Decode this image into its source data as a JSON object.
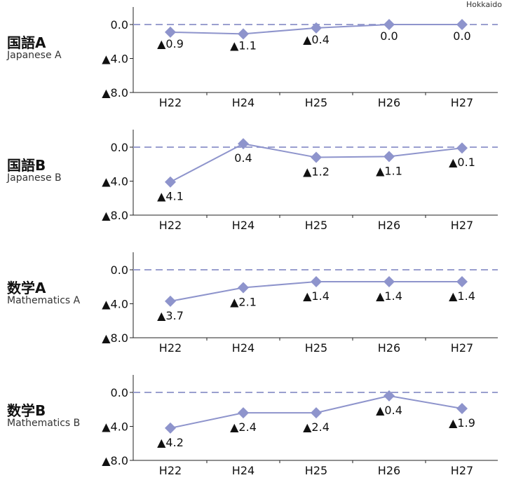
{
  "region_label": "Hokkaido",
  "chart_data": [
    {
      "type": "line",
      "title": "国語A",
      "subtitle": "Japanese A",
      "categories": [
        "H22",
        "H24",
        "H25",
        "H26",
        "H27"
      ],
      "values": [
        -0.9,
        -1.1,
        -0.4,
        0.0,
        0.0
      ],
      "labels": [
        "▲0.9",
        "▲1.1",
        "▲0.4",
        "0.0",
        "0.0"
      ],
      "yticks": [
        "0.0",
        "▲4.0",
        "▲8.0"
      ],
      "ylim": [
        -8,
        0
      ]
    },
    {
      "type": "line",
      "title": "国語B",
      "subtitle": "Japanese B",
      "categories": [
        "H22",
        "H24",
        "H25",
        "H26",
        "H27"
      ],
      "values": [
        -4.1,
        0.4,
        -1.2,
        -1.1,
        -0.1
      ],
      "labels": [
        "▲4.1",
        "0.4",
        "▲1.2",
        "▲1.1",
        "▲0.1"
      ],
      "yticks": [
        "0.0",
        "▲4.0",
        "▲8.0"
      ],
      "ylim": [
        -8,
        0
      ]
    },
    {
      "type": "line",
      "title": "数学A",
      "subtitle": "Mathematics A",
      "categories": [
        "H22",
        "H24",
        "H25",
        "H26",
        "H27"
      ],
      "values": [
        -3.7,
        -2.1,
        -1.4,
        -1.4,
        -1.4
      ],
      "labels": [
        "▲3.7",
        "▲2.1",
        "▲1.4",
        "▲1.4",
        "▲1.4"
      ],
      "yticks": [
        "0.0",
        "▲4.0",
        "▲8.0"
      ],
      "ylim": [
        -8,
        0
      ]
    },
    {
      "type": "line",
      "title": "数学B",
      "subtitle": "Mathematics B",
      "categories": [
        "H22",
        "H24",
        "H25",
        "H26",
        "H27"
      ],
      "values": [
        -4.2,
        -2.4,
        -2.4,
        -0.4,
        -1.9
      ],
      "labels": [
        "▲4.2",
        "▲2.4",
        "▲2.4",
        "▲0.4",
        "▲1.9"
      ],
      "yticks": [
        "0.0",
        "▲4.0",
        "▲8.0"
      ],
      "ylim": [
        -8,
        0
      ]
    }
  ],
  "colors": {
    "line": "#8e94cc",
    "marker": "#8e94cc",
    "zero_line": "#9a9fcf",
    "axis": "#222222",
    "text": "#111111"
  }
}
